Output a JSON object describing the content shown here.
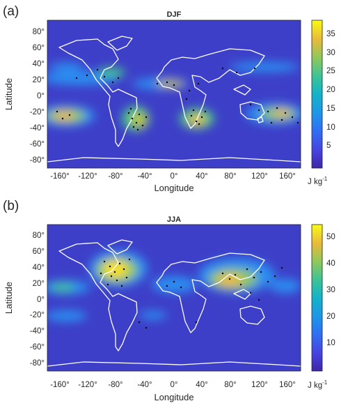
{
  "panels": [
    {
      "label": "(a)",
      "title": "DJF",
      "xlabel": "Longitude",
      "ylabel": "Latitude",
      "x_ticks": [
        "-160°",
        "-120°",
        "-80°",
        "-40°",
        "0°",
        "40°",
        "80°",
        "120°",
        "160°"
      ],
      "y_ticks": [
        "80°",
        "60°",
        "40°",
        "20°",
        "0°",
        "-20°",
        "-40°",
        "-60°",
        "-80°"
      ],
      "colorbar": {
        "ticks": [
          "35",
          "30",
          "25",
          "20",
          "15",
          "10",
          "5"
        ],
        "unit": "J kg",
        "unit_exp": "-1",
        "range": [
          0,
          40
        ]
      }
    },
    {
      "label": "(b)",
      "title": "JJA",
      "xlabel": "Longitude",
      "ylabel": "Latitude",
      "x_ticks": [
        "-160°",
        "-120°",
        "-80°",
        "-40°",
        "0°",
        "40°",
        "80°",
        "120°",
        "160°"
      ],
      "y_ticks": [
        "80°",
        "60°",
        "40°",
        "20°",
        "0°",
        "-20°",
        "-40°",
        "-60°",
        "-80°"
      ],
      "colorbar": {
        "ticks": [
          "50",
          "40",
          "30",
          "20",
          "10"
        ],
        "unit": "J kg",
        "unit_exp": "-1",
        "range": [
          0,
          55
        ]
      }
    }
  ],
  "colors": {
    "background_field": "#3f3fbf",
    "coastline": "#ffffff",
    "points": "#000000",
    "colormap": [
      "#3e26a8",
      "#4743e1",
      "#3f69f7",
      "#2c8ef1",
      "#1ba9d9",
      "#13bdb7",
      "#44c68a",
      "#8ec85a",
      "#c8c22f",
      "#f2b93a",
      "#fadf25",
      "#f9fb14"
    ]
  }
}
